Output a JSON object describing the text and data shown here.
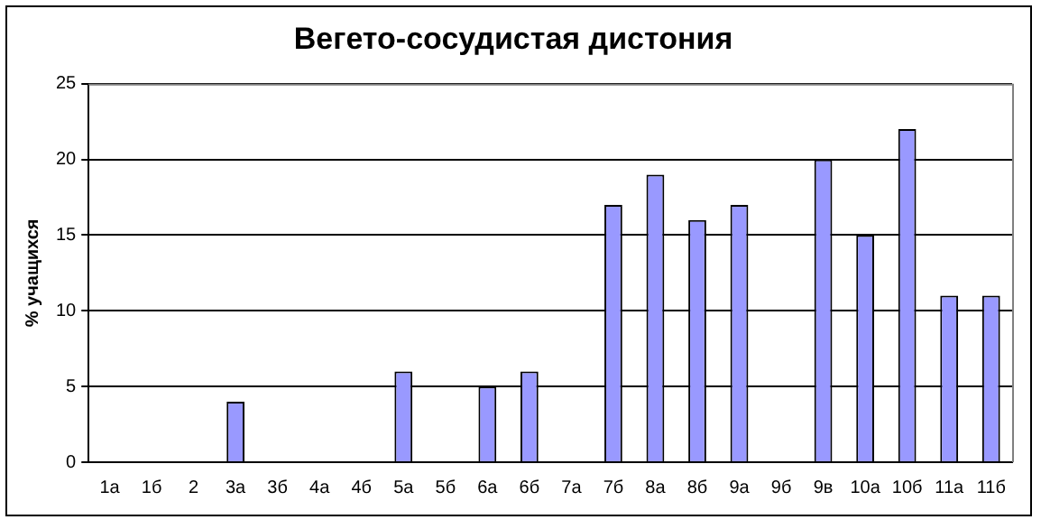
{
  "chart_data": {
    "type": "bar",
    "title": "Вегето-сосудистая дистония",
    "ylabel": "% учащихся",
    "categories": [
      "1а",
      "1б",
      "2",
      "3а",
      "3б",
      "4а",
      "4б",
      "5а",
      "5б",
      "6а",
      "6б",
      "7а",
      "7б",
      "8а",
      "8б",
      "9а",
      "9б",
      "9в",
      "10а",
      "10б",
      "11а",
      "11б"
    ],
    "values": [
      0,
      0,
      0,
      4,
      0,
      0,
      0,
      6,
      0,
      5,
      6,
      0,
      17,
      19,
      16,
      17,
      0,
      20,
      15,
      22,
      11,
      11
    ],
    "color": "#9999ff",
    "ylim": [
      0,
      25
    ],
    "yticks": [
      0,
      5,
      10,
      15,
      20,
      25
    ],
    "grid": "y",
    "legend": false
  }
}
